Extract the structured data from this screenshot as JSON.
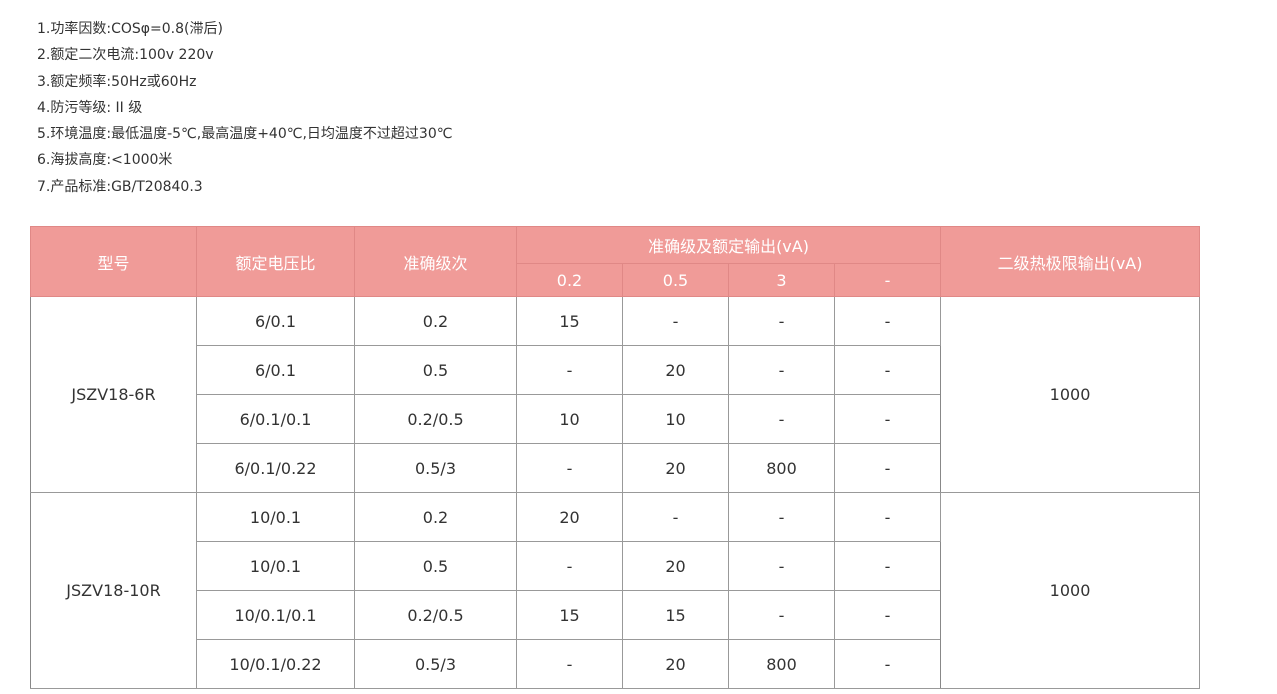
{
  "specs": [
    "1.功率因数:COSφ=0.8(滞后)",
    "2.额定二次电流:100v 220v",
    "3.额定频率:50Hz或60Hz",
    "4.防污等级: II 级",
    "5.环境温度:最低温度-5℃,最高温度+40℃,日均温度不过超过30℃",
    "6.海拔高度:<1000米",
    "7.产品标准:GB/T20840.3"
  ],
  "table": {
    "headers": {
      "model": "型号",
      "ratio": "额定电压比",
      "accuracy": "准确级次",
      "output_group": "准确级及额定输出(vA)",
      "sub": [
        "0.2",
        "0.5",
        "3",
        "-"
      ],
      "limit": "二级热极限输出(vA)"
    },
    "groups": [
      {
        "model": "JSZV18-6R",
        "limit": "1000",
        "rows": [
          [
            "6/0.1",
            "0.2",
            "15",
            "-",
            "-",
            "-"
          ],
          [
            "6/0.1",
            "0.5",
            "-",
            "20",
            "-",
            "-"
          ],
          [
            "6/0.1/0.1",
            "0.2/0.5",
            "10",
            "10",
            "-",
            "-"
          ],
          [
            "6/0.1/0.22",
            "0.5/3",
            "-",
            "20",
            "800",
            "-"
          ]
        ]
      },
      {
        "model": "JSZV18-10R",
        "limit": "1000",
        "rows": [
          [
            "10/0.1",
            "0.2",
            "20",
            "-",
            "-",
            "-"
          ],
          [
            "10/0.1",
            "0.5",
            "-",
            "20",
            "-",
            "-"
          ],
          [
            "10/0.1/0.1",
            "0.2/0.5",
            "15",
            "15",
            "-",
            "-"
          ],
          [
            "10/0.1/0.22",
            "0.5/3",
            "-",
            "20",
            "800",
            "-"
          ]
        ]
      }
    ]
  }
}
